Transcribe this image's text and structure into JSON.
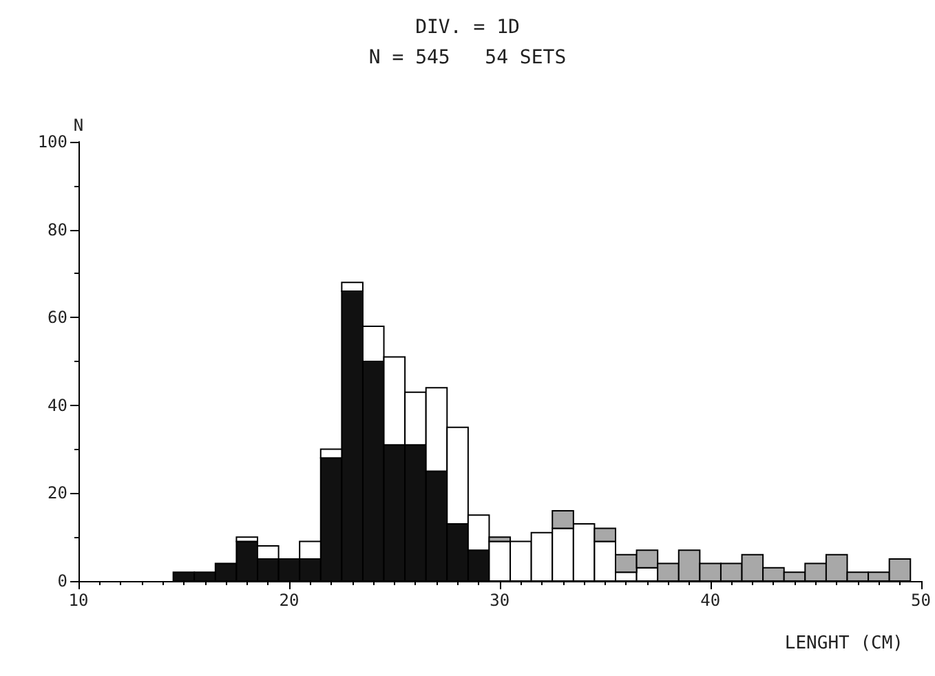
{
  "chart_data": {
    "type": "bar",
    "title": "DIV. = 1D",
    "subtitle": "N = 545   54 SETS",
    "xlabel": "LENGHT (CM)",
    "ylabel": "N",
    "x": [
      15,
      16,
      17,
      18,
      19,
      20,
      21,
      22,
      23,
      24,
      25,
      26,
      27,
      28,
      29,
      30,
      31,
      32,
      33,
      34,
      35,
      36,
      37,
      38,
      39,
      40,
      41,
      42,
      43,
      44,
      45,
      46,
      47,
      48,
      49
    ],
    "stacked": true,
    "series": [
      {
        "color": "#111111",
        "values": [
          2,
          2,
          4,
          9,
          5,
          5,
          5,
          28,
          66,
          50,
          31,
          31,
          25,
          13,
          7,
          0,
          0,
          0,
          0,
          0,
          0,
          0,
          0,
          0,
          0,
          0,
          0,
          0,
          0,
          0,
          0,
          0,
          0,
          0,
          0
        ]
      },
      {
        "color": "#ffffff",
        "values": [
          0,
          0,
          0,
          1,
          3,
          0,
          4,
          2,
          2,
          8,
          20,
          12,
          19,
          22,
          8,
          9,
          9,
          11,
          12,
          13,
          9,
          2,
          3,
          0,
          0,
          0,
          0,
          0,
          0,
          0,
          0,
          0,
          0,
          0,
          0
        ]
      },
      {
        "color": "#a8a8a8",
        "values": [
          0,
          0,
          0,
          0,
          0,
          0,
          0,
          0,
          0,
          0,
          0,
          0,
          0,
          0,
          0,
          1,
          0,
          0,
          4,
          0,
          3,
          4,
          4,
          4,
          7,
          4,
          4,
          6,
          3,
          2,
          4,
          6,
          2,
          2,
          5
        ]
      }
    ],
    "xlim": [
      10,
      50
    ],
    "xticks": [
      10,
      20,
      30,
      40,
      50
    ],
    "ylim": [
      0,
      100
    ],
    "yticks": [
      0,
      20,
      40,
      60,
      80,
      100
    ],
    "grid": false,
    "legend": false
  }
}
